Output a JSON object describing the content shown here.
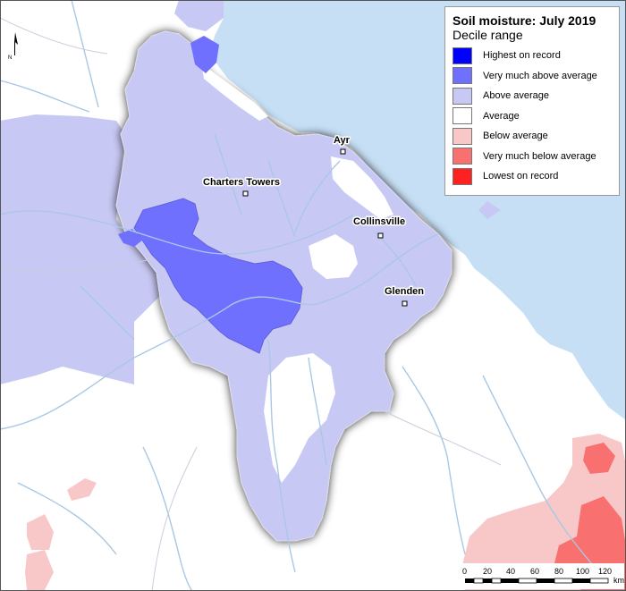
{
  "legend": {
    "title": "Soil moisture: July 2019",
    "subtitle": "Decile range",
    "items": [
      {
        "label": "Highest on record",
        "color": "#0000ff"
      },
      {
        "label": "Very much above average",
        "color": "#7070ff"
      },
      {
        "label": "Above average",
        "color": "#c8c8f4"
      },
      {
        "label": "Average",
        "color": "#ffffff"
      },
      {
        "label": "Below average",
        "color": "#f8c8c8"
      },
      {
        "label": "Very much below average",
        "color": "#f87070"
      },
      {
        "label": "Lowest on record",
        "color": "#ff2020"
      }
    ]
  },
  "towns": [
    {
      "name": "Ayr"
    },
    {
      "name": "Charters Towers"
    },
    {
      "name": "Collinsville"
    },
    {
      "name": "Glenden"
    }
  ],
  "north_arrow": {
    "label": "N",
    "icon": "north-arrow-icon"
  },
  "scale_bar": {
    "ticks": [
      "0",
      "20",
      "40",
      "60",
      "80",
      "100",
      "120"
    ],
    "unit": "km"
  },
  "colors": {
    "sea": "#c6dff5",
    "river": "#aac8e4",
    "boundary": "#ccccdd"
  }
}
